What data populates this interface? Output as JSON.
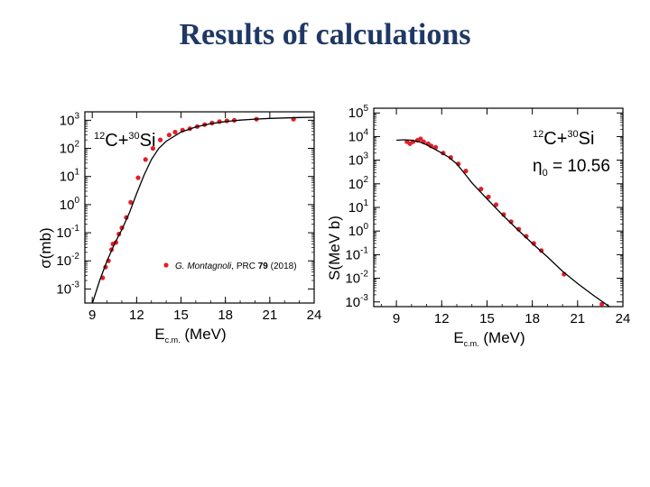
{
  "slide": {
    "title": "Results of calculations"
  },
  "chart_data": [
    {
      "type": "scatter",
      "name": "cross-section",
      "system": {
        "z": "12",
        "a": "C+",
        "z2": "30",
        "b": "Si"
      },
      "xlabel": {
        "main": "E",
        "sub": "c.m.",
        "unit": " (MeV)"
      },
      "ylabel": "σ(mb)",
      "x_ticks": [
        9,
        12,
        15,
        18,
        21,
        24
      ],
      "xlim": [
        8.5,
        24
      ],
      "ylim_log10": [
        -3.5,
        3.3
      ],
      "y_ticks": [
        {
          "base": "10",
          "exp": "3"
        },
        {
          "base": "10",
          "exp": "2"
        },
        {
          "base": "10",
          "exp": "1"
        },
        {
          "base": "10",
          "exp": "0"
        },
        {
          "base": "10",
          "exp": "-1"
        },
        {
          "base": "10",
          "exp": "-2"
        },
        {
          "base": "10",
          "exp": "-3"
        }
      ],
      "legend": {
        "author": "G. Montagnoli",
        "journal": ", PRC ",
        "volume": "79",
        "year": " (2018)",
        "color": "#e0202a"
      },
      "series": [
        {
          "kind": "points",
          "x": [
            9.7,
            9.9,
            10.1,
            10.3,
            10.4,
            10.6,
            10.8,
            11.0,
            11.3,
            11.6,
            12.1,
            12.6,
            13.1,
            13.6,
            14.2,
            14.6,
            15.1,
            15.6,
            16.1,
            16.6,
            17.1,
            17.6,
            18.1,
            18.6,
            20.1,
            22.6
          ],
          "y": [
            0.0025,
            0.006,
            0.01,
            0.025,
            0.04,
            0.045,
            0.09,
            0.15,
            0.35,
            1.2,
            9,
            40,
            100,
            200,
            300,
            380,
            450,
            500,
            600,
            700,
            800,
            900,
            950,
            1000,
            1100,
            1100
          ],
          "color": "#e0202a"
        },
        {
          "kind": "curve",
          "x": [
            9.0,
            9.5,
            10.0,
            10.5,
            11.0,
            11.5,
            12.0,
            12.5,
            13.0,
            13.5,
            14.0,
            15.0,
            16.0,
            17.0,
            18.0,
            19.0,
            20.0,
            21.0,
            22.0,
            23.0,
            24.0
          ],
          "y": [
            0.0003,
            0.002,
            0.01,
            0.04,
            0.13,
            0.5,
            2.5,
            11,
            40,
            100,
            180,
            380,
            580,
            760,
            900,
            1010,
            1100,
            1160,
            1210,
            1250,
            1280
          ],
          "color": "#000000"
        }
      ]
    },
    {
      "type": "scatter",
      "name": "s-factor",
      "system": {
        "z": "12",
        "a": "C+",
        "z2": "30",
        "b": "Si"
      },
      "eta": {
        "symbol": "η",
        "sub": "0",
        "value": " = 10.56"
      },
      "xlabel": {
        "main": "E",
        "sub": "c.m.",
        "unit": " (MeV)"
      },
      "ylabel": "S(MeV b)",
      "x_ticks": [
        9,
        12,
        15,
        18,
        21,
        24
      ],
      "xlim": [
        7.5,
        24
      ],
      "ylim_log10": [
        -3.2,
        5.2
      ],
      "y_ticks": [
        {
          "base": "10",
          "exp": "5"
        },
        {
          "base": "10",
          "exp": "4"
        },
        {
          "base": "10",
          "exp": "3"
        },
        {
          "base": "10",
          "exp": "2"
        },
        {
          "base": "10",
          "exp": "1"
        },
        {
          "base": "10",
          "exp": "0"
        },
        {
          "base": "10",
          "exp": "-1"
        },
        {
          "base": "10",
          "exp": "-2"
        },
        {
          "base": "10",
          "exp": "-3"
        }
      ],
      "series": [
        {
          "kind": "points",
          "x": [
            9.7,
            9.9,
            10.1,
            10.4,
            10.6,
            10.8,
            11.1,
            11.3,
            11.6,
            12.1,
            12.6,
            13.1,
            13.6,
            14.6,
            15.1,
            15.6,
            16.1,
            16.6,
            17.1,
            17.6,
            18.1,
            18.6,
            20.1,
            22.6
          ],
          "y": [
            6000,
            5000,
            6000,
            7000,
            8000,
            6000,
            5000,
            4000,
            3500,
            2000,
            1300,
            700,
            350,
            60,
            28,
            13,
            5,
            2.5,
            1.2,
            0.6,
            0.3,
            0.15,
            0.015,
            0.0008
          ],
          "color": "#e0202a"
        },
        {
          "kind": "curve",
          "x": [
            9.0,
            9.5,
            10.0,
            10.5,
            11.0,
            11.5,
            12.0,
            12.5,
            13.0,
            13.5,
            14.0,
            14.5,
            15.0,
            16.0,
            17.0,
            18.0,
            19.0,
            20.0,
            21.0,
            22.0,
            23.0,
            24.0
          ],
          "y": [
            7000,
            7300,
            7000,
            6000,
            4500,
            3000,
            2000,
            1300,
            700,
            280,
            110,
            50,
            23,
            5,
            1.2,
            0.3,
            0.08,
            0.02,
            0.006,
            0.002,
            0.0007,
            0.0003
          ],
          "color": "#000000"
        }
      ]
    }
  ]
}
